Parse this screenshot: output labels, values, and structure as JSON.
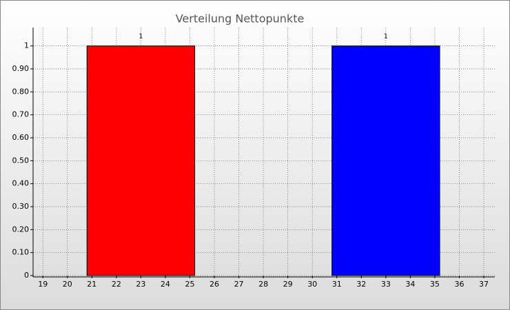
{
  "chart_data": {
    "type": "bar",
    "title": "Verteilung Nettopunkte",
    "x": [
      23,
      33
    ],
    "values": [
      1,
      1
    ],
    "colors": [
      "#ff0000",
      "#0000ff"
    ],
    "xlim": [
      18.6,
      37.45
    ],
    "xticks": [
      19,
      20,
      21,
      22,
      23,
      24,
      25,
      26,
      27,
      28,
      29,
      30,
      31,
      32,
      33,
      34,
      35,
      36,
      37
    ],
    "ylim": [
      0,
      1.08
    ],
    "yticks": [
      0,
      {
        "value": 0.1,
        "label": "0.10"
      },
      {
        "value": 0.2,
        "label": "0.20"
      },
      {
        "value": 0.3,
        "label": "0.30"
      },
      {
        "value": 0.4,
        "label": "0.40"
      },
      {
        "value": 0.5,
        "label": "0.50"
      },
      {
        "value": 0.6,
        "label": "0.60"
      },
      {
        "value": 0.7,
        "label": "0.70"
      },
      {
        "value": 0.8,
        "label": "0.80"
      },
      {
        "value": 0.9,
        "label": "0.90"
      },
      1
    ],
    "grid": true
  }
}
